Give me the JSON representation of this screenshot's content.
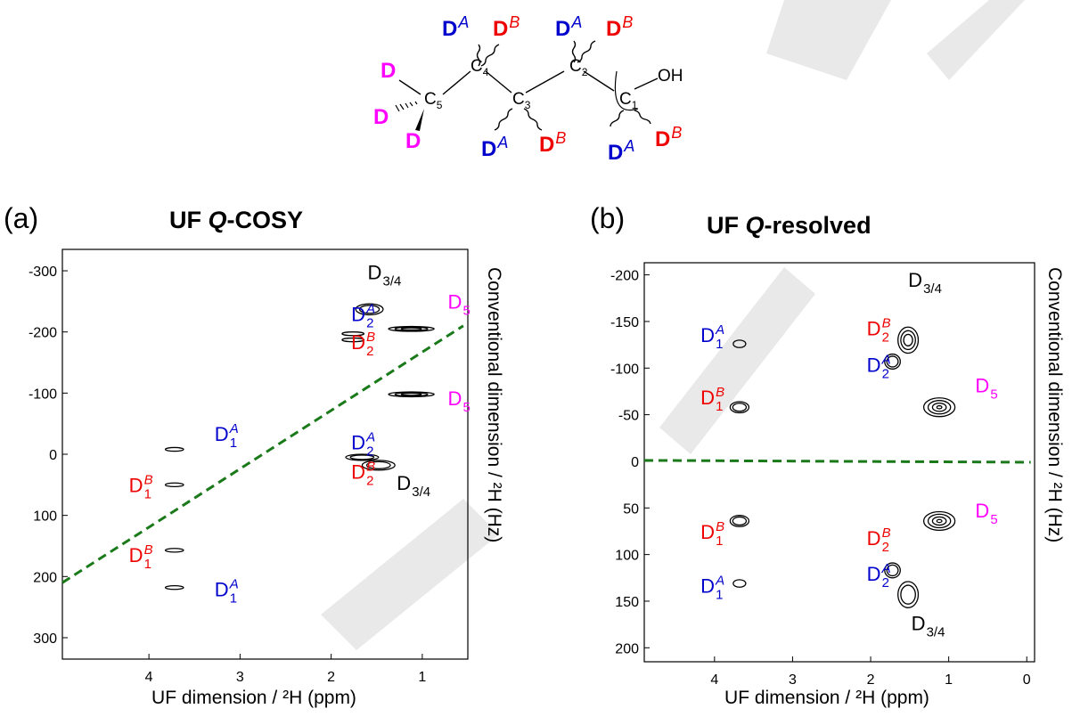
{
  "molecule": {
    "atoms": {
      "c1": "C",
      "c1sub": "1",
      "c2": "C",
      "c2sub": "2",
      "c3": "C",
      "c3sub": "3",
      "c4": "C",
      "c4sub": "4",
      "c5": "C",
      "c5sub": "5",
      "oh": "OH"
    },
    "deuterium_labels": [
      {
        "id": "c5-top",
        "text": "D",
        "sup": "",
        "color": "#ff00ff"
      },
      {
        "id": "c5-left",
        "text": "D",
        "sup": "",
        "color": "#ff00ff"
      },
      {
        "id": "c5-bottom",
        "text": "D",
        "sup": "",
        "color": "#ff00ff"
      },
      {
        "id": "c4-a",
        "text": "D",
        "sup": "A",
        "color": "#0000cc"
      },
      {
        "id": "c4-b",
        "text": "D",
        "sup": "B",
        "color": "#ee0000"
      },
      {
        "id": "c2-a",
        "text": "D",
        "sup": "A",
        "color": "#0000cc"
      },
      {
        "id": "c2-b",
        "text": "D",
        "sup": "B",
        "color": "#ee0000"
      },
      {
        "id": "c3-a",
        "text": "D",
        "sup": "A",
        "color": "#0000cc"
      },
      {
        "id": "c3-b",
        "text": "D",
        "sup": "B",
        "color": "#ee0000"
      },
      {
        "id": "c1-a",
        "text": "D",
        "sup": "A",
        "color": "#0000cc"
      },
      {
        "id": "c1-b",
        "text": "D",
        "sup": "B",
        "color": "#ee0000"
      }
    ]
  },
  "colors": {
    "A": "#0000cc",
    "B": "#ee0000",
    "D5": "#ff00ff",
    "D34": "#000000",
    "dashed": "#1a7a1a"
  },
  "chart_data": [
    {
      "type": "contour",
      "panel_label": "(a)",
      "title": "UF Q-COSY",
      "xlabel": "UF dimension / ²H (ppm)",
      "ylabel": "Conventional dimension / ²H (Hz)",
      "xlim": [
        4.95,
        0.5
      ],
      "ylim": [
        335,
        -335
      ],
      "xticks": [
        4,
        3,
        2,
        1
      ],
      "yticks": [
        -300,
        -200,
        -100,
        0,
        100,
        200,
        300
      ],
      "dashed_line": {
        "points": [
          [
            4.95,
            210
          ],
          [
            0.55,
            -210
          ]
        ]
      },
      "peaks": [
        {
          "x": 3.72,
          "y": -8,
          "rx": 0.1,
          "ry": 3,
          "rings": 1,
          "width": "small"
        },
        {
          "x": 3.72,
          "y": 50,
          "rx": 0.1,
          "ry": 3,
          "rings": 1
        },
        {
          "x": 3.72,
          "y": 157,
          "rx": 0.1,
          "ry": 3,
          "rings": 1
        },
        {
          "x": 3.72,
          "y": 218,
          "rx": 0.1,
          "ry": 3,
          "rings": 1
        },
        {
          "x": 1.58,
          "y": -237,
          "rx": 0.15,
          "ry": 9,
          "rings": 2
        },
        {
          "x": 1.12,
          "y": -205,
          "rx": 0.25,
          "ry": 4,
          "rings": 3
        },
        {
          "x": 1.76,
          "y": -197,
          "rx": 0.12,
          "ry": 3,
          "rings": 1
        },
        {
          "x": 1.76,
          "y": -187,
          "rx": 0.12,
          "ry": 3,
          "rings": 1
        },
        {
          "x": 1.12,
          "y": -98,
          "rx": 0.25,
          "ry": 4,
          "rings": 3
        },
        {
          "x": 1.66,
          "y": 5,
          "rx": 0.18,
          "ry": 5,
          "rings": 2
        },
        {
          "x": 1.48,
          "y": 18,
          "rx": 0.18,
          "ry": 8,
          "rings": 2
        }
      ],
      "labels": [
        {
          "x": 3.28,
          "y": -22,
          "text": "D",
          "sub": "1",
          "sup": "A",
          "color": "#0000cc"
        },
        {
          "x": 4.22,
          "y": 62,
          "text": "D",
          "sub": "1",
          "sup": "B",
          "color": "#ee0000"
        },
        {
          "x": 4.22,
          "y": 176,
          "text": "D",
          "sub": "1",
          "sup": "B",
          "color": "#ee0000"
        },
        {
          "x": 3.28,
          "y": 232,
          "text": "D",
          "sub": "1",
          "sup": "A",
          "color": "#0000cc"
        },
        {
          "x": 1.78,
          "y": -218,
          "text": "D",
          "sub": "2",
          "sup": "A",
          "color": "#0000cc"
        },
        {
          "x": 1.78,
          "y": -172,
          "text": "D",
          "sub": "2",
          "sup": "B",
          "color": "#ee0000"
        },
        {
          "x": 1.6,
          "y": -286,
          "text": "D",
          "sub": "3/4",
          "sup": "",
          "color": "#000000"
        },
        {
          "x": 0.72,
          "y": -238,
          "text": "D",
          "sub": "5",
          "sup": "",
          "color": "#ff00ff"
        },
        {
          "x": 0.72,
          "y": -80,
          "text": "D",
          "sub": "5",
          "sup": "",
          "color": "#ff00ff"
        },
        {
          "x": 1.78,
          "y": -8,
          "text": "D",
          "sub": "2",
          "sup": "A",
          "color": "#0000cc"
        },
        {
          "x": 1.78,
          "y": 40,
          "text": "D",
          "sub": "2",
          "sup": "B",
          "color": "#ee0000"
        },
        {
          "x": 1.28,
          "y": 58,
          "text": "D",
          "sub": "3/4",
          "sup": "",
          "color": "#000000"
        }
      ]
    },
    {
      "type": "contour",
      "panel_label": "(b)",
      "title": "UF Q-resolved",
      "xlabel": "UF dimension / ²H (ppm)",
      "ylabel": "Conventional dimension / ²H (Hz)",
      "xlim": [
        4.9,
        -0.1
      ],
      "ylim": [
        215,
        -213
      ],
      "xticks": [
        4,
        3,
        2,
        1,
        0
      ],
      "yticks": [
        200,
        150,
        100,
        50,
        0,
        -50,
        -100,
        -150,
        -200
      ],
      "dashed_line": {
        "points": [
          [
            4.9,
            -1
          ],
          [
            -0.05,
            1
          ]
        ]
      },
      "peaks": [
        {
          "x": 3.68,
          "y": 131,
          "rx": 0.08,
          "ry": 4,
          "rings": 1
        },
        {
          "x": 3.68,
          "y": 64,
          "rx": 0.12,
          "ry": 6,
          "rings": 2
        },
        {
          "x": 1.52,
          "y": 143,
          "rx": 0.13,
          "ry": 14,
          "rings": 2
        },
        {
          "x": 1.72,
          "y": 117,
          "rx": 0.1,
          "ry": 8,
          "rings": 2
        },
        {
          "x": 1.12,
          "y": 64,
          "rx": 0.2,
          "ry": 10,
          "rings": 4
        },
        {
          "x": 3.68,
          "y": -58,
          "rx": 0.12,
          "ry": 6,
          "rings": 2
        },
        {
          "x": 3.68,
          "y": -126,
          "rx": 0.08,
          "ry": 4,
          "rings": 1
        },
        {
          "x": 1.12,
          "y": -58,
          "rx": 0.2,
          "ry": 10,
          "rings": 4
        },
        {
          "x": 1.72,
          "y": -107,
          "rx": 0.1,
          "ry": 8,
          "rings": 2
        },
        {
          "x": 1.52,
          "y": -130,
          "rx": 0.13,
          "ry": 14,
          "rings": 3
        }
      ],
      "labels": [
        {
          "x": 4.18,
          "y": 141,
          "text": "D",
          "sub": "1",
          "sup": "A",
          "color": "#0000cc"
        },
        {
          "x": 4.18,
          "y": 83,
          "text": "D",
          "sub": "1",
          "sup": "B",
          "color": "#ee0000"
        },
        {
          "x": 1.48,
          "y": 181,
          "text": "D",
          "sub": "3/4",
          "sup": "",
          "color": "#000000"
        },
        {
          "x": 2.05,
          "y": 128,
          "text": "D",
          "sub": "2",
          "sup": "A",
          "color": "#0000cc"
        },
        {
          "x": 2.05,
          "y": 90,
          "text": "D",
          "sub": "2",
          "sup": "B",
          "color": "#ee0000"
        },
        {
          "x": 0.66,
          "y": 60,
          "text": "D",
          "sub": "5",
          "sup": "",
          "color": "#ff00ff"
        },
        {
          "x": 4.18,
          "y": -61,
          "text": "D",
          "sub": "1",
          "sup": "B",
          "color": "#ee0000"
        },
        {
          "x": 4.18,
          "y": -128,
          "text": "D",
          "sub": "1",
          "sup": "A",
          "color": "#0000cc"
        },
        {
          "x": 0.66,
          "y": -74,
          "text": "D",
          "sub": "5",
          "sup": "",
          "color": "#ff00ff"
        },
        {
          "x": 2.05,
          "y": -96,
          "text": "D",
          "sub": "2",
          "sup": "A",
          "color": "#0000cc"
        },
        {
          "x": 2.05,
          "y": -135,
          "text": "D",
          "sub": "2",
          "sup": "B",
          "color": "#ee0000"
        },
        {
          "x": 1.52,
          "y": -187,
          "text": "D",
          "sub": "3/4",
          "sup": "",
          "color": "#000000"
        }
      ]
    }
  ]
}
